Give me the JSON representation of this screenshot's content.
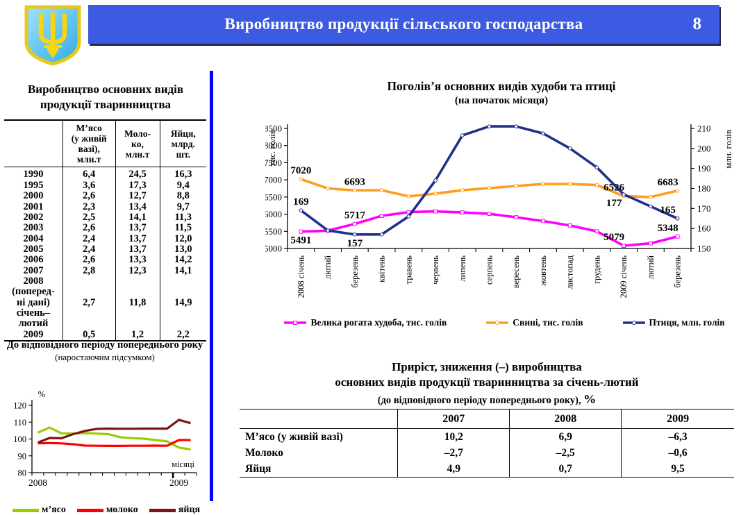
{
  "header": {
    "title": "Виробництво продукції сільського господарства",
    "page_number": "8",
    "banner_color": "#3D5AE2"
  },
  "left_panel": {
    "table_title": "Виробництво основних видів\nпродукції тваринництва",
    "production_table": {
      "col_headers": [
        "",
        "М’ясо\n(у живій\nвазі),\nмлн.т",
        "Моло-\nко,\nмлн.т",
        "Яйця,\nмлрд.\nшт."
      ],
      "rows": [
        {
          "label": "1990",
          "values": [
            "6,4",
            "24,5",
            "16,3"
          ]
        },
        {
          "label": "1995",
          "values": [
            "3,6",
            "17,3",
            "9,4"
          ]
        },
        {
          "label": "2000",
          "values": [
            "2,6",
            "12,7",
            "8,8"
          ]
        },
        {
          "label": "2001",
          "values": [
            "2,3",
            "13,4",
            "9,7"
          ]
        },
        {
          "label": "2002",
          "values": [
            "2,5",
            "14,1",
            "11,3"
          ]
        },
        {
          "label": "2003",
          "values": [
            "2,6",
            "13,7",
            "11,5"
          ]
        },
        {
          "label": "2004",
          "values": [
            "2,4",
            "13,7",
            "12,0"
          ]
        },
        {
          "label": "2005",
          "values": [
            "2,4",
            "13,7",
            "13,0"
          ]
        },
        {
          "label": "2006",
          "values": [
            "2,6",
            "13,3",
            "14,2"
          ]
        },
        {
          "label": "2007",
          "values": [
            "2,8",
            "12,3",
            "14,1"
          ]
        },
        {
          "label": "2008\n(поперед-\nні дані)",
          "values": [
            "2,7",
            "11,8",
            "14,9"
          ]
        },
        {
          "label": "січень–\nлютий\n2009",
          "values": [
            "0,5",
            "1,2",
            "2,2"
          ]
        }
      ]
    },
    "note_title": "До відповідного періоду попереднього року",
    "note_subtitle": "(наростаючим підсумком)"
  },
  "main_chart_section": {
    "title": "Поголів’я основних видів худоби та птиці",
    "subtitle": "(на початок місяця)"
  },
  "bottom_section": {
    "title_line1": "Приріст, зниження (–) виробництва",
    "title_line2": "основних видів продукції тваринництва за січень-лютий",
    "title_line3": "(до відповідного періоду попереднього року),",
    "title_line3_pct": "%",
    "growth_table": {
      "col_headers": [
        "",
        "2007",
        "2008",
        "2009"
      ],
      "rows": [
        {
          "label": "М’ясо (у живій вазі)",
          "values": [
            "10,2",
            "6,9",
            "–6,3"
          ]
        },
        {
          "label": "Молоко",
          "values": [
            "–2,7",
            "–2,5",
            "–0,6"
          ]
        },
        {
          "label": "Яйця",
          "values": [
            "4,9",
            "0,7",
            "9,5"
          ]
        }
      ]
    }
  },
  "chart_data": [
    {
      "id": "livestock-headcount",
      "type": "line",
      "title": "Поголів’я основних видів худоби та птиці",
      "subtitle": "(на початок місяця)",
      "x_labels": [
        "2008 січень",
        "лютий",
        "березень",
        "квітень",
        "травень",
        "червень",
        "липень",
        "серпень",
        "вересень",
        "жовтень",
        "листопад",
        "грудень",
        "2009 січень",
        "лютий",
        "березень"
      ],
      "y_left": {
        "label": "тис. голів",
        "min": 5000,
        "max": 8500,
        "step": 500
      },
      "y_right": {
        "label": "млн. голів",
        "min": 150,
        "max": 210,
        "step": 10
      },
      "grid": false,
      "legend_position": "bottom",
      "series": [
        {
          "name": "Велика рогата худоба, тис. голів",
          "axis": "left",
          "color": "#FF00FF",
          "marker": "square",
          "values": [
            5491,
            5520,
            5717,
            5950,
            6060,
            6080,
            6050,
            6010,
            5910,
            5800,
            5670,
            5500,
            5079,
            5150,
            5348
          ]
        },
        {
          "name": "Свині, тис. голів",
          "axis": "left",
          "color": "#FF9E1B",
          "marker": "circle",
          "values": [
            7020,
            6750,
            6693,
            6700,
            6520,
            6600,
            6700,
            6760,
            6820,
            6880,
            6880,
            6850,
            6526,
            6500,
            6683
          ]
        },
        {
          "name": "Птиця, млн. голів",
          "axis": "right",
          "color": "#20308A",
          "marker": "circle",
          "values": [
            169,
            159,
            157,
            157,
            166,
            184,
            206.5,
            211,
            211,
            207.5,
            200,
            190.5,
            177,
            171,
            165
          ]
        }
      ],
      "point_labels": [
        {
          "series": 1,
          "index": 0,
          "text": "7020",
          "position": "above"
        },
        {
          "series": 1,
          "index": 2,
          "text": "6693",
          "position": "above"
        },
        {
          "series": 1,
          "index": 12,
          "text": "6526",
          "position": "above"
        },
        {
          "series": 1,
          "index": 14,
          "text": "6683",
          "position": "above"
        },
        {
          "series": 0,
          "index": 0,
          "text": "5491",
          "position": "below"
        },
        {
          "series": 0,
          "index": 2,
          "text": "5717",
          "position": "above"
        },
        {
          "series": 0,
          "index": 12,
          "text": "5079",
          "position": "above"
        },
        {
          "series": 0,
          "index": 14,
          "text": "5348",
          "position": "above"
        },
        {
          "series": 2,
          "index": 0,
          "text": "169",
          "position": "above"
        },
        {
          "series": 2,
          "index": 2,
          "text": "157",
          "position": "below"
        },
        {
          "series": 2,
          "index": 12,
          "text": "177",
          "position": "below"
        },
        {
          "series": 2,
          "index": 14,
          "text": "165",
          "position": "above"
        }
      ]
    },
    {
      "id": "yoy-production",
      "type": "line",
      "title": "До відповідного періоду попереднього року (наростаючим підсумком)",
      "ylabel": "%",
      "ylim": [
        80,
        120
      ],
      "y_step": 10,
      "x_axis_note": "місяці",
      "x_year_labels": [
        {
          "index": 0,
          "text": "2008"
        },
        {
          "index": 12,
          "text": "2009"
        }
      ],
      "bold_tick_index": 12,
      "grid": false,
      "legend_position": "bottom",
      "series": [
        {
          "name": "м’ясо",
          "color": "#99CC00",
          "values": [
            103.8,
            106.8,
            103.4,
            103.2,
            103.5,
            103.2,
            102.9,
            101.1,
            100.5,
            100.2,
            99.4,
            98.6,
            94.9,
            93.8
          ]
        },
        {
          "name": "молоко",
          "color": "#FF0000",
          "values": [
            97.4,
            97.6,
            97.4,
            96.9,
            96.1,
            96.0,
            95.9,
            95.9,
            96.0,
            96.0,
            96.1,
            96.0,
            99.4,
            99.4
          ]
        },
        {
          "name": "яйця",
          "color": "#7F1214",
          "values": [
            97.9,
            100.6,
            100.4,
            102.9,
            104.8,
            106.0,
            106.2,
            106.1,
            106.1,
            106.2,
            106.2,
            106.2,
            111.4,
            109.4
          ]
        }
      ]
    }
  ]
}
